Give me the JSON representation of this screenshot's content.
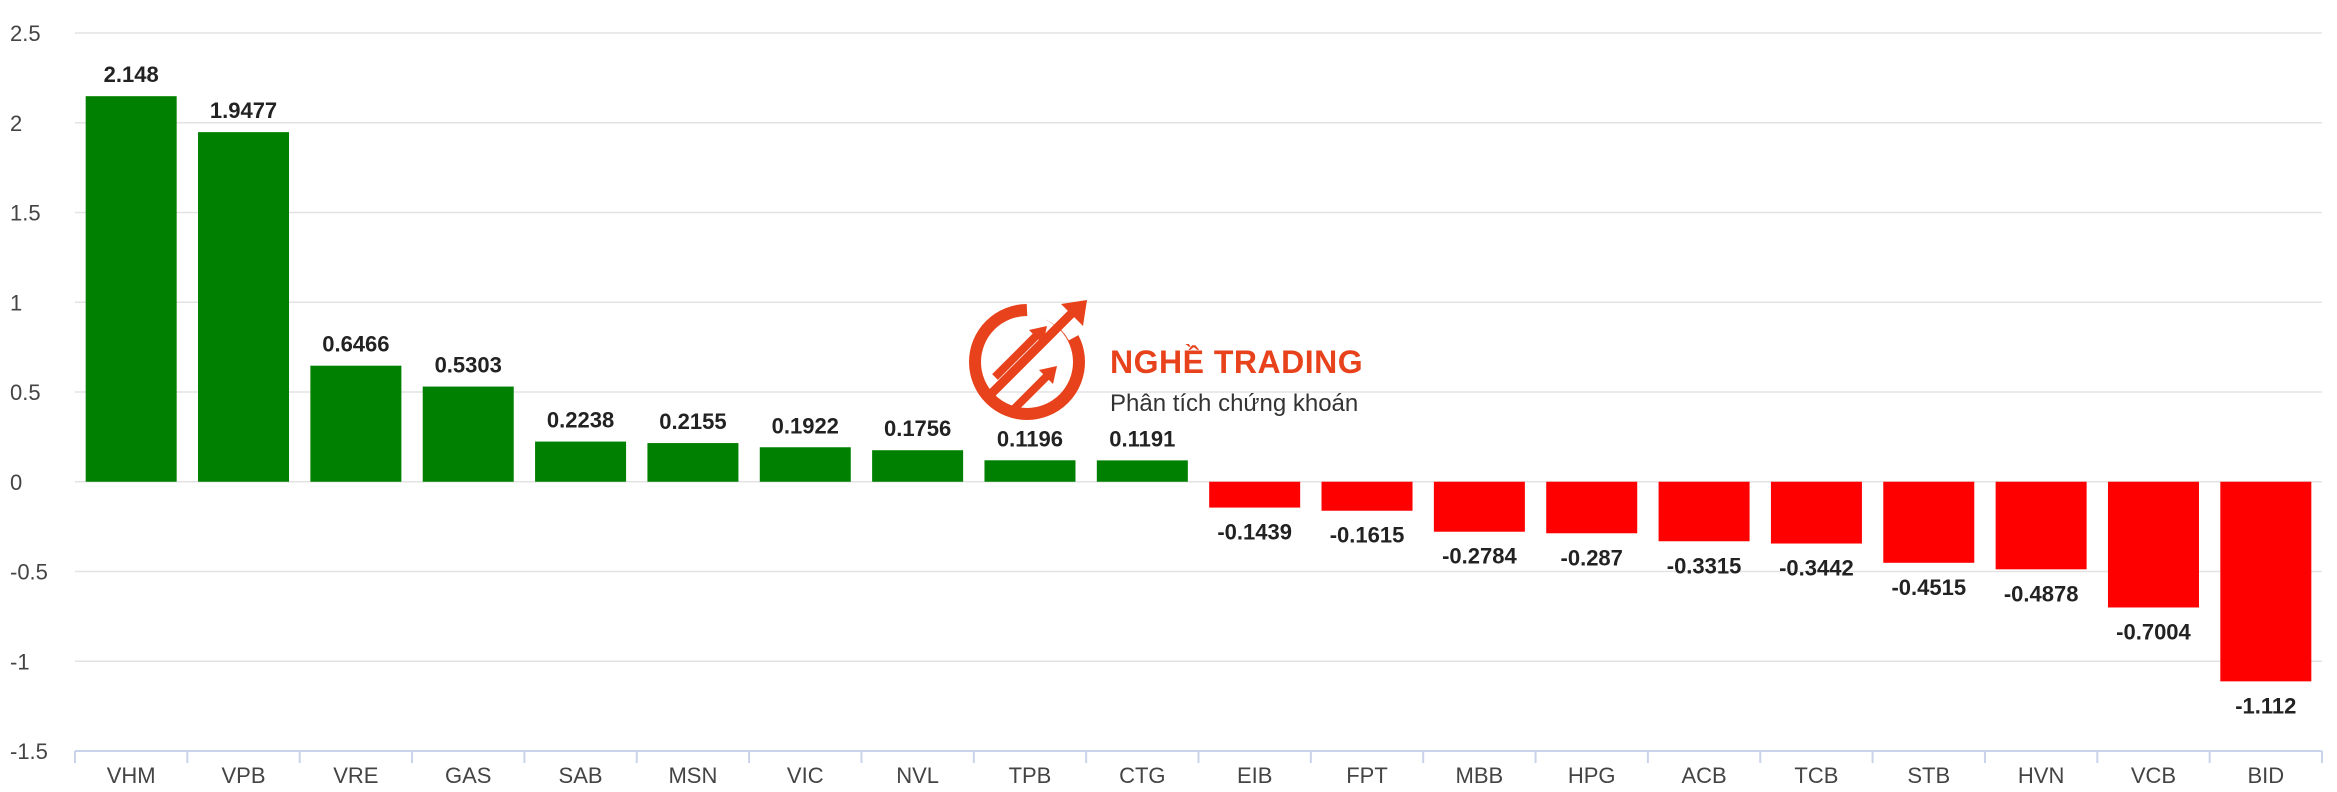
{
  "chart_data": {
    "type": "bar",
    "categories": [
      "VHM",
      "VPB",
      "VRE",
      "GAS",
      "SAB",
      "MSN",
      "VIC",
      "NVL",
      "TPB",
      "CTG",
      "EIB",
      "FPT",
      "MBB",
      "HPG",
      "ACB",
      "TCB",
      "STB",
      "HVN",
      "VCB",
      "BID"
    ],
    "values": [
      2.148,
      1.9477,
      0.6466,
      0.5303,
      0.2238,
      0.2155,
      0.1922,
      0.1756,
      0.1196,
      0.1191,
      -0.1439,
      -0.1615,
      -0.2784,
      -0.287,
      -0.3315,
      -0.3442,
      -0.4515,
      -0.4878,
      -0.7004,
      -1.112
    ],
    "labels": [
      "2.148",
      "1.9477",
      "0.6466",
      "0.5303",
      "0.2238",
      "0.2155",
      "0.1922",
      "0.1756",
      "0.1196",
      "0.1191",
      "-0.1439",
      "-0.1615",
      "-0.2784",
      "-0.287",
      "-0.3315",
      "-0.3442",
      "-0.4515",
      "-0.4878",
      "-0.7004",
      "-1.112"
    ],
    "yticks": [
      "2.5",
      "2",
      "1.5",
      "1",
      "0.5",
      "0",
      "-0.5",
      "-1",
      "-1.5"
    ],
    "ylim": [
      -1.5,
      2.5
    ],
    "grid": true,
    "colors": {
      "positive": "#008000",
      "negative": "#ff0000"
    }
  },
  "watermark": {
    "title": "NGHỀ TRADING",
    "subtitle": "Phân tích chứng khoán",
    "color": "#e8421c"
  }
}
